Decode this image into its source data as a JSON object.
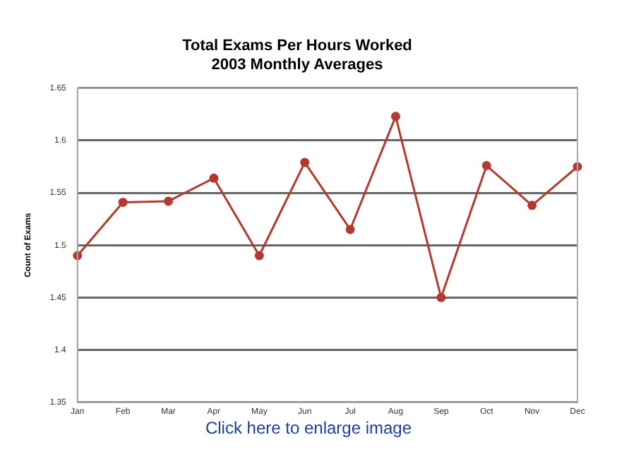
{
  "chart_data": {
    "type": "line",
    "title": [
      "Total Exams Per Hours Worked",
      "2003 Monthly Averages"
    ],
    "ylabel": "Count of Exams",
    "categories": [
      "Jan",
      "Feb",
      "Mar",
      "Apr",
      "May",
      "Jun",
      "Jul",
      "Aug",
      "Sep",
      "Oct",
      "Nov",
      "Dec"
    ],
    "series": [
      {
        "color": "#b5392f",
        "values": [
          1.49,
          1.541,
          1.542,
          1.564,
          1.49,
          1.579,
          1.515,
          1.623,
          1.45,
          1.576,
          1.538,
          1.575
        ]
      }
    ],
    "ylim": [
      1.35,
      1.65
    ],
    "yticks": [
      1.35,
      1.4,
      1.45,
      1.5,
      1.55,
      1.6,
      1.65
    ],
    "grid": "y",
    "marker": "circle",
    "line_style": "solid",
    "annotations": [
      "Click here to enlarge image"
    ]
  }
}
